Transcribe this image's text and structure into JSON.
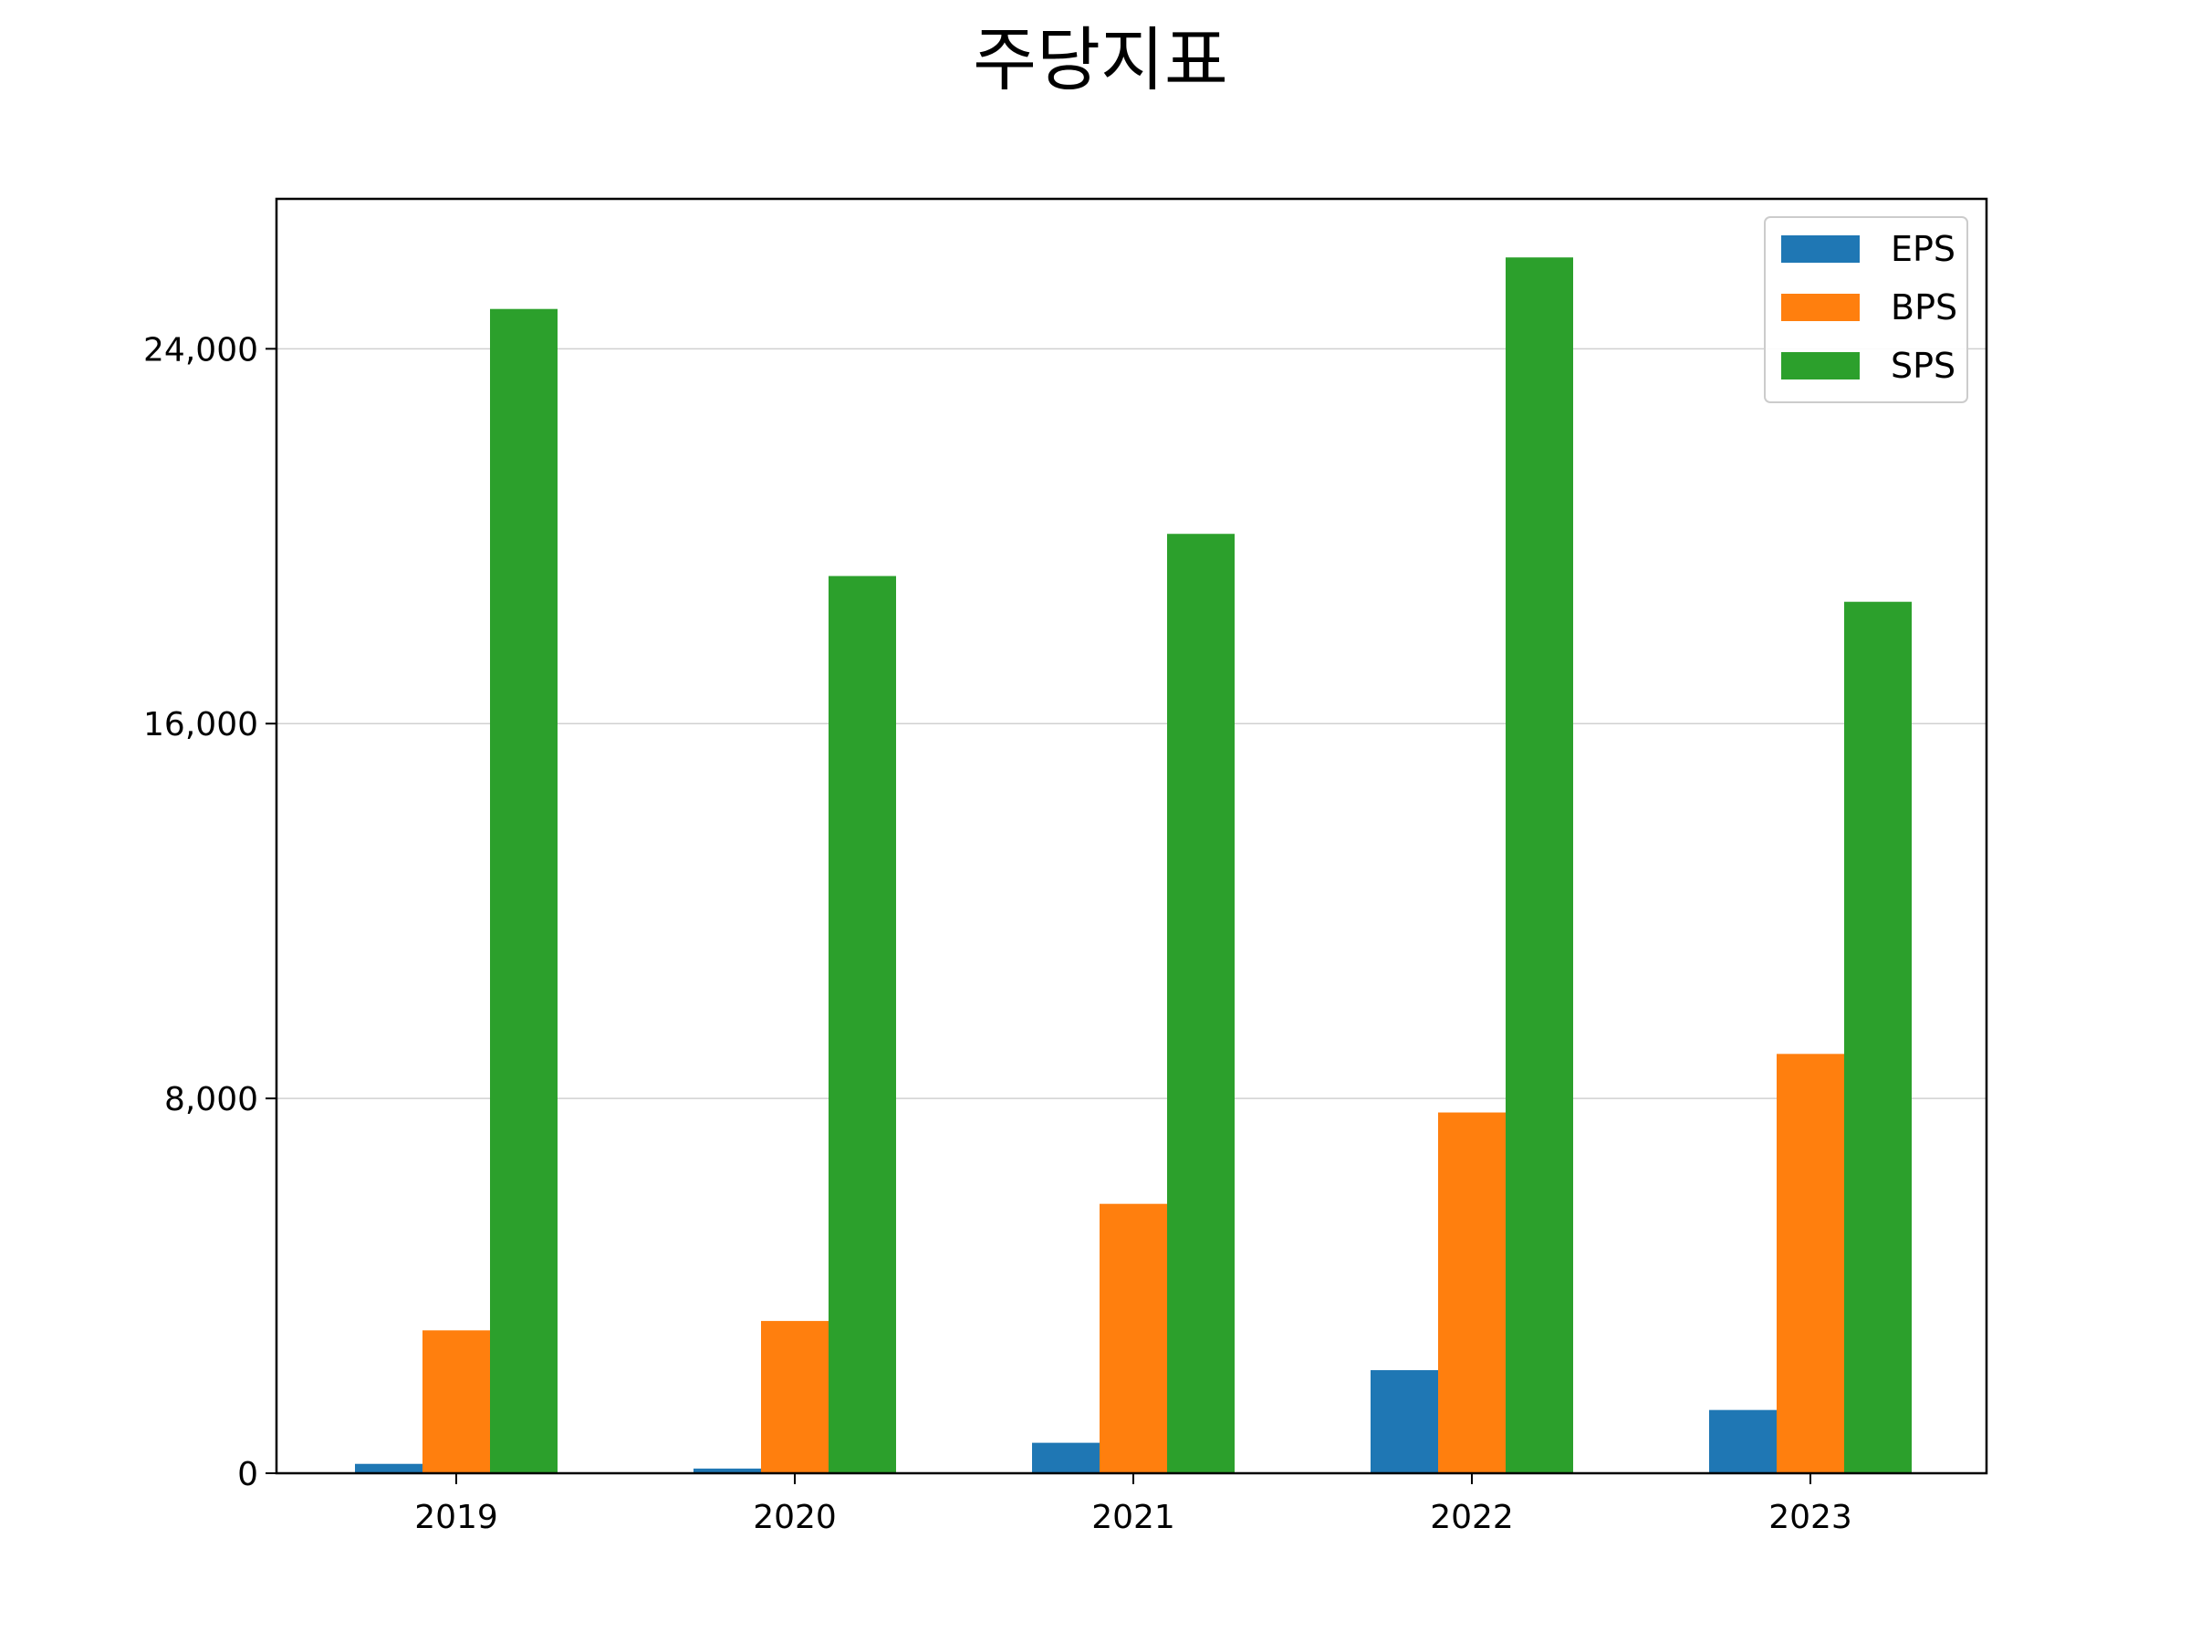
{
  "chart_data": {
    "type": "bar",
    "title": "주당지표",
    "xlabel": "",
    "ylabel": "",
    "categories": [
      "2019",
      "2020",
      "2021",
      "2022",
      "2023"
    ],
    "series": [
      {
        "name": "EPS",
        "color": "#1f77b4",
        "values": [
          200,
          100,
          650,
          2200,
          1350
        ]
      },
      {
        "name": "BPS",
        "color": "#ff7f0e",
        "values": [
          3050,
          3250,
          5750,
          7700,
          8950
        ]
      },
      {
        "name": "SPS",
        "color": "#2ca02c",
        "values": [
          24850,
          19150,
          20050,
          25950,
          18600
        ]
      }
    ],
    "yticks": [
      0,
      8000,
      16000,
      24000
    ],
    "ytick_labels": [
      "0",
      "8,000",
      "16,000",
      "24,000"
    ],
    "ylim": [
      0,
      27200
    ],
    "grid": "y",
    "legend": "top-right"
  }
}
